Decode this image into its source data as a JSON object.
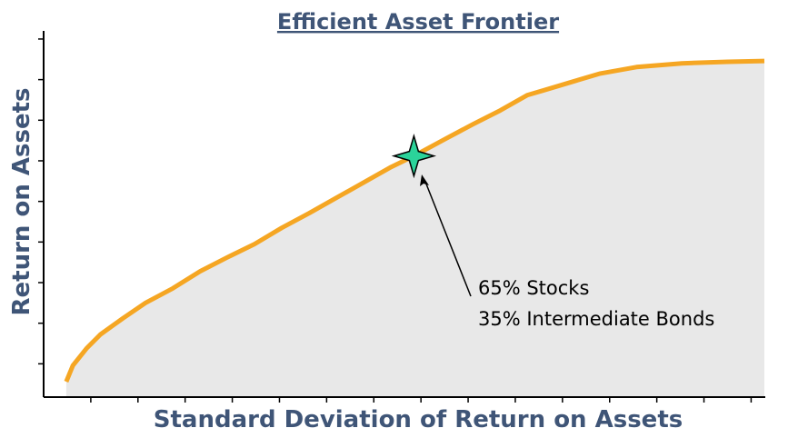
{
  "chart_data": {
    "type": "area-line",
    "title": "Efficient Asset Frontier",
    "x_label": "Standard Deviation of Return on Assets",
    "y_label": "Return on Assets",
    "x": [
      0.48,
      0.62,
      0.91,
      1.2,
      1.68,
      2.16,
      2.74,
      3.32,
      3.89,
      4.47,
      5.05,
      5.63,
      6.21,
      6.79,
      7.37,
      7.85,
      8.52,
      9.1,
      9.68,
      10.26,
      10.64,
      11.22,
      11.8,
      12.57,
      13.53,
      14.5,
      15.28
    ],
    "values": [
      0.56,
      0.96,
      1.38,
      1.72,
      2.12,
      2.5,
      2.86,
      3.28,
      3.62,
      3.95,
      4.35,
      4.71,
      5.09,
      5.47,
      5.85,
      6.12,
      6.54,
      6.9,
      7.24,
      7.62,
      7.75,
      7.95,
      8.15,
      8.31,
      8.4,
      8.44,
      8.46
    ],
    "color": "#f5a623",
    "fill_color": "#e8e8e8",
    "xlim": [
      0,
      15.3
    ],
    "ylim": [
      0.18,
      9.2
    ],
    "xticks": [
      1,
      2,
      3,
      4,
      5,
      6,
      7,
      8,
      9,
      10,
      11,
      12,
      13,
      14,
      15
    ],
    "yticks": [
      1,
      2,
      3,
      4,
      5,
      6,
      7,
      8,
      9
    ],
    "marker": {
      "x": 7.85,
      "y": 6.12,
      "color": "#2bd39a"
    },
    "annotation": [
      "65% Stocks",
      "35% Intermediate Bonds"
    ]
  }
}
